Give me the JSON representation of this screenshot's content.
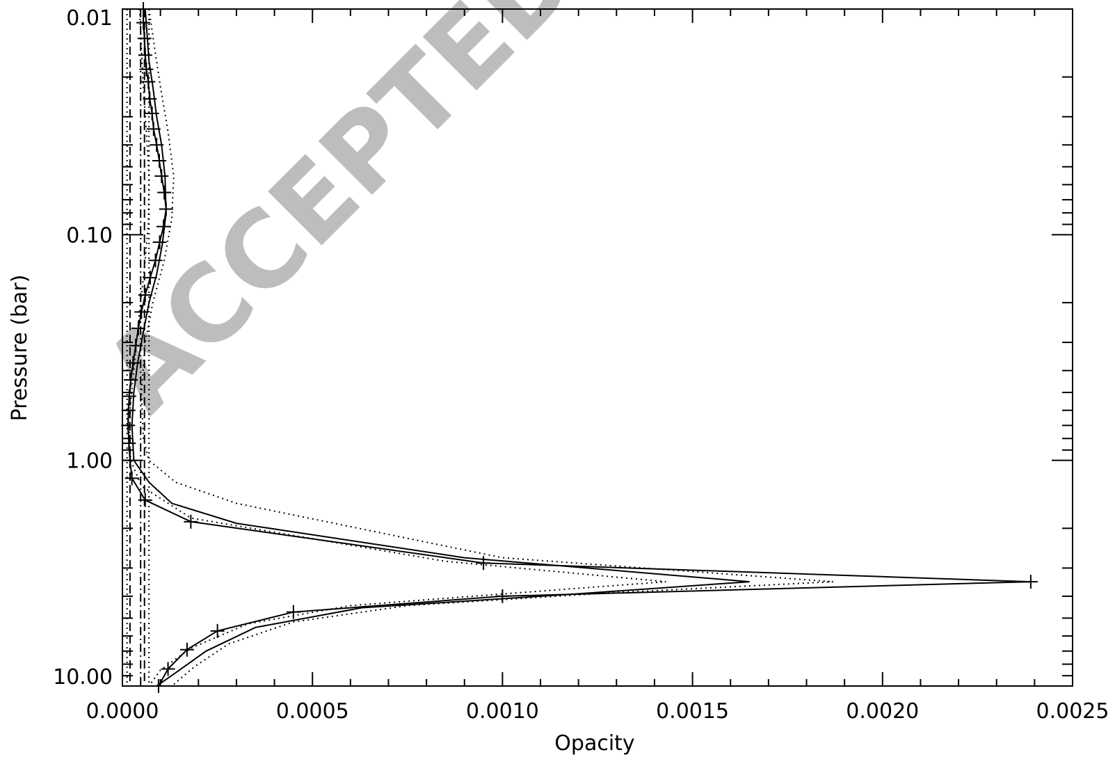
{
  "chart_data": {
    "type": "line",
    "xlabel": "Opacity",
    "ylabel": "Pressure (bar)",
    "xlim": [
      0.0,
      0.0025
    ],
    "ylim": [
      10.0,
      0.01
    ],
    "y_scale": "log",
    "y_inverted": true,
    "x_ticks": [
      "0.0000",
      "0.0005",
      "0.0010",
      "0.0015",
      "0.0020",
      "0.0025"
    ],
    "x_tick_values": [
      0.0,
      0.0005,
      0.001,
      0.0015,
      0.002,
      0.0025
    ],
    "y_ticks": [
      "0.01",
      "0.10",
      "1.00",
      "10.00"
    ],
    "y_tick_values": [
      0.01,
      0.1,
      1.0,
      10.0
    ],
    "grid": false,
    "watermark": "ACCEPTED M",
    "series": [
      {
        "style": "solid-cross",
        "points": [
          [
            5.5e-05,
            0.01
          ],
          [
            5.5e-05,
            0.0115
          ],
          [
            5.8e-05,
            0.0135
          ],
          [
            6e-05,
            0.016
          ],
          [
            6.3e-05,
            0.0185
          ],
          [
            6.8e-05,
            0.021
          ],
          [
            7.2e-05,
            0.025
          ],
          [
            7.8e-05,
            0.029
          ],
          [
            8.2e-05,
            0.034
          ],
          [
            9e-05,
            0.04
          ],
          [
            9.7e-05,
            0.047
          ],
          [
            0.000103,
            0.055
          ],
          [
            0.00011,
            0.065
          ],
          [
            0.000115,
            0.077
          ],
          [
            0.000108,
            0.092
          ],
          [
            9.8e-05,
            0.108
          ],
          [
            8.7e-05,
            0.13
          ],
          [
            7.3e-05,
            0.155
          ],
          [
            6e-05,
            0.185
          ],
          [
            5e-05,
            0.22
          ],
          [
            4.2e-05,
            0.26
          ],
          [
            3.5e-05,
            0.31
          ],
          [
            2.8e-05,
            0.37
          ],
          [
            2.2e-05,
            0.44
          ],
          [
            1.8e-05,
            0.52
          ],
          [
            1.6e-05,
            0.6
          ],
          [
            1.5e-05,
            0.7
          ],
          [
            1.7e-05,
            0.84
          ],
          [
            2e-05,
            1.0
          ],
          [
            2.5e-05,
            1.2
          ],
          [
            6e-05,
            1.5
          ],
          [
            0.00018,
            1.87
          ],
          [
            0.00095,
            2.85
          ],
          [
            0.00239,
            3.45
          ],
          [
            0.001,
            4.0
          ],
          [
            0.00045,
            4.7
          ],
          [
            0.00025,
            5.7
          ],
          [
            0.00017,
            6.9
          ],
          [
            0.00012,
            8.4
          ],
          [
            9.5e-05,
            10.0
          ]
        ]
      },
      {
        "style": "solid",
        "points": [
          [
            6e-05,
            0.01
          ],
          [
            6.5e-05,
            0.013
          ],
          [
            7e-05,
            0.017
          ],
          [
            8e-05,
            0.022
          ],
          [
            9e-05,
            0.03
          ],
          [
            0.000103,
            0.04
          ],
          [
            0.000112,
            0.055
          ],
          [
            0.000115,
            0.08
          ],
          [
            0.000105,
            0.11
          ],
          [
            9e-05,
            0.15
          ],
          [
            7e-05,
            0.2
          ],
          [
            5.5e-05,
            0.27
          ],
          [
            4e-05,
            0.37
          ],
          [
            3e-05,
            0.5
          ],
          [
            2.5e-05,
            0.7
          ],
          [
            3e-05,
            1.0
          ],
          [
            7e-05,
            1.25
          ],
          [
            0.00013,
            1.55
          ],
          [
            0.0003,
            1.9
          ],
          [
            0.0009,
            2.7
          ],
          [
            0.00165,
            3.45
          ],
          [
            0.0012,
            3.9
          ],
          [
            0.00063,
            4.5
          ],
          [
            0.00035,
            5.5
          ],
          [
            0.00022,
            7.0
          ],
          [
            0.00015,
            8.5
          ],
          [
            9e-05,
            10.0
          ]
        ]
      },
      {
        "style": "dotted",
        "points": [
          [
            7e-05,
            0.01
          ],
          [
            8.5e-05,
            0.015
          ],
          [
            0.0001,
            0.022
          ],
          [
            0.00012,
            0.035
          ],
          [
            0.000135,
            0.055
          ],
          [
            0.00013,
            0.085
          ],
          [
            0.00011,
            0.13
          ],
          [
            8e-05,
            0.2
          ],
          [
            6e-05,
            0.3
          ],
          [
            5e-05,
            0.5
          ],
          [
            5.5e-05,
            0.8
          ],
          [
            7e-05,
            1.0
          ],
          [
            0.00014,
            1.25
          ],
          [
            0.0003,
            1.55
          ],
          [
            0.001,
            2.7
          ],
          [
            0.00187,
            3.45
          ],
          [
            0.0013,
            3.85
          ],
          [
            0.00075,
            4.4
          ],
          [
            0.00045,
            5.2
          ],
          [
            0.00028,
            6.5
          ],
          [
            0.00019,
            8.2
          ],
          [
            0.00013,
            10.0
          ]
        ]
      },
      {
        "style": "dotted",
        "points": [
          [
            4.5e-05,
            0.01
          ],
          [
            5e-05,
            0.015
          ],
          [
            5.5e-05,
            0.022
          ],
          [
            6.3e-05,
            0.035
          ],
          [
            7e-05,
            0.055
          ],
          [
            6.8e-05,
            0.09
          ],
          [
            5.8e-05,
            0.14
          ],
          [
            4.5e-05,
            0.22
          ],
          [
            3.3e-05,
            0.35
          ],
          [
            2.2e-05,
            0.55
          ],
          [
            1.8e-05,
            0.8
          ],
          [
            2.2e-05,
            1.0
          ],
          [
            5e-05,
            1.3
          ],
          [
            0.00018,
            1.8
          ],
          [
            0.00085,
            2.8
          ],
          [
            0.00143,
            3.45
          ],
          [
            0.00105,
            3.85
          ],
          [
            0.0006,
            4.4
          ],
          [
            0.00033,
            5.3
          ],
          [
            0.00018,
            6.8
          ],
          [
            0.0001,
            8.5
          ],
          [
            7e-05,
            10.0
          ]
        ]
      },
      {
        "style": "dashed-vertical",
        "points": [
          [
            5.8e-05,
            0.01
          ],
          [
            5.8e-05,
            10.0
          ]
        ]
      },
      {
        "style": "dashed-vertical",
        "points": [
          [
            2e-05,
            0.01
          ],
          [
            2e-05,
            10.0
          ]
        ]
      },
      {
        "style": "dashdot-vertical",
        "points": [
          [
            4.8e-05,
            0.01
          ],
          [
            4.8e-05,
            10.0
          ]
        ]
      },
      {
        "style": "dotted-vertical",
        "points": [
          [
            1.2e-05,
            0.01
          ],
          [
            1.2e-05,
            10.0
          ]
        ]
      },
      {
        "style": "dotted-vertical",
        "points": [
          [
            7e-05,
            0.01
          ],
          [
            7e-05,
            10.0
          ]
        ]
      }
    ]
  }
}
